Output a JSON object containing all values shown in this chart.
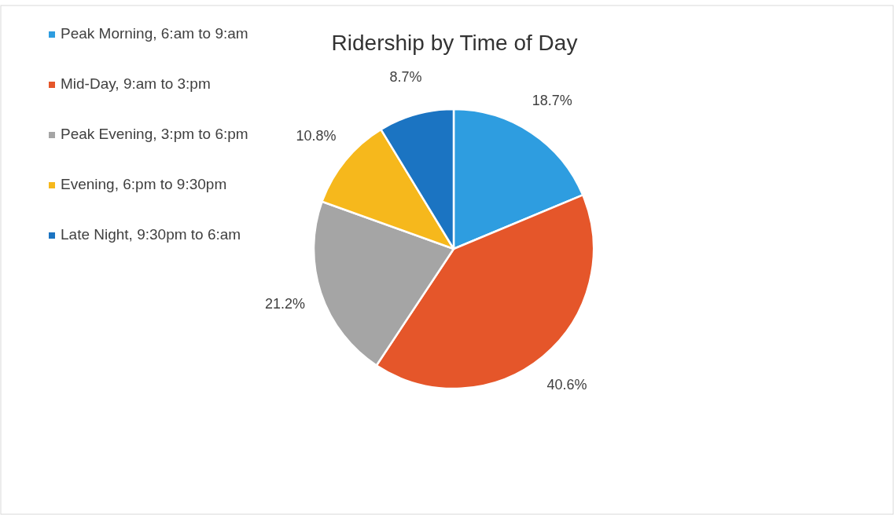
{
  "chart_data": {
    "type": "pie",
    "title": "Ridership by Time of Day",
    "categories": [
      "Peak Morning, 6:am to 9:am",
      "Mid-Day, 9:am to 3:pm",
      "Peak Evening, 3:pm to 6:pm",
      "Evening, 6:pm to 9:30pm",
      "Late Night, 9:30pm to 6:am"
    ],
    "values": [
      18.7,
      40.6,
      21.2,
      10.8,
      8.7
    ],
    "colors": [
      "#2e9de0",
      "#e5562a",
      "#a5a5a5",
      "#f6b81c",
      "#1b74c2"
    ],
    "value_labels": [
      "18.7%",
      "40.6%",
      "21.2%",
      "10.8%",
      "8.7%"
    ],
    "legend": "top left"
  }
}
